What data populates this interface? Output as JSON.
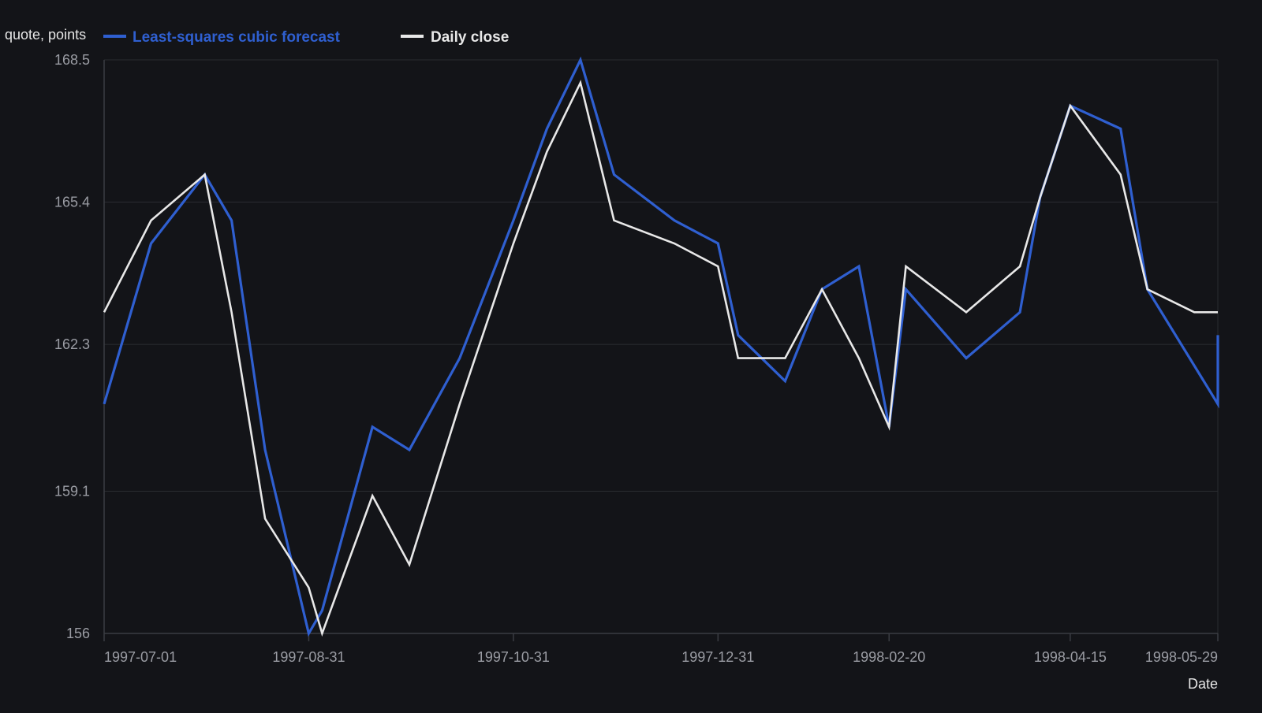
{
  "chart_data": {
    "type": "line",
    "title": "",
    "ylabel": "quote, points",
    "xlabel": "Date",
    "ylim": [
      156,
      168.5
    ],
    "y_ticks": [
      "156",
      "159.1",
      "162.3",
      "165.4",
      "168.5"
    ],
    "x_ticks": [
      {
        "date": "1997-07-01",
        "label": "1997-07-01"
      },
      {
        "date": "1997-08-31",
        "label": "1997-08-31"
      },
      {
        "date": "1997-10-31",
        "label": "1997-10-31"
      },
      {
        "date": "1997-12-31",
        "label": "1997-12-31"
      },
      {
        "date": "1998-02-20",
        "label": "1998-02-20"
      },
      {
        "date": "1998-04-15",
        "label": "1998-04-15"
      },
      {
        "date": "1998-05-29",
        "label": "1998-05-29"
      }
    ],
    "xlim": [
      "1997-07-01",
      "1998-05-29"
    ],
    "grid": true,
    "legend_position": "top-left",
    "series": [
      {
        "name": "Least-squares cubic forecast",
        "color": "#2f5fd0",
        "points": [
          {
            "x": "1997-07-01",
            "y": 161.0
          },
          {
            "x": "1997-07-15",
            "y": 164.5
          },
          {
            "x": "1997-07-31",
            "y": 166.0
          },
          {
            "x": "1997-08-08",
            "y": 165.0
          },
          {
            "x": "1997-08-18",
            "y": 160.0
          },
          {
            "x": "1997-08-31",
            "y": 156.0
          },
          {
            "x": "1997-09-04",
            "y": 156.5
          },
          {
            "x": "1997-09-19",
            "y": 160.5
          },
          {
            "x": "1997-09-30",
            "y": 160.0
          },
          {
            "x": "1997-10-15",
            "y": 162.0
          },
          {
            "x": "1997-10-31",
            "y": 165.0
          },
          {
            "x": "1997-11-10",
            "y": 167.0
          },
          {
            "x": "1997-11-20",
            "y": 168.5
          },
          {
            "x": "1997-11-30",
            "y": 166.0
          },
          {
            "x": "1997-12-18",
            "y": 165.0
          },
          {
            "x": "1997-12-31",
            "y": 164.5
          },
          {
            "x": "1998-01-06",
            "y": 162.5
          },
          {
            "x": "1998-01-20",
            "y": 161.5
          },
          {
            "x": "1998-01-31",
            "y": 163.5
          },
          {
            "x": "1998-02-11",
            "y": 164.0
          },
          {
            "x": "1998-02-20",
            "y": 160.5
          },
          {
            "x": "1998-02-25",
            "y": 163.5
          },
          {
            "x": "1998-03-15",
            "y": 162.0
          },
          {
            "x": "1998-03-31",
            "y": 163.0
          },
          {
            "x": "1998-04-06",
            "y": 165.5
          },
          {
            "x": "1998-04-15",
            "y": 167.5
          },
          {
            "x": "1998-04-30",
            "y": 167.0
          },
          {
            "x": "1998-05-08",
            "y": 163.5
          },
          {
            "x": "1998-05-29",
            "y": 161.0
          },
          {
            "x": "1998-05-29",
            "y": 162.5
          }
        ]
      },
      {
        "name": "Daily close",
        "color": "#e8e8e8",
        "points": [
          {
            "x": "1997-07-01",
            "y": 163.0
          },
          {
            "x": "1997-07-15",
            "y": 165.0
          },
          {
            "x": "1997-07-31",
            "y": 166.0
          },
          {
            "x": "1997-08-08",
            "y": 163.0
          },
          {
            "x": "1997-08-18",
            "y": 158.5
          },
          {
            "x": "1997-08-31",
            "y": 157.0
          },
          {
            "x": "1997-09-04",
            "y": 156.0
          },
          {
            "x": "1997-09-19",
            "y": 159.0
          },
          {
            "x": "1997-09-30",
            "y": 157.5
          },
          {
            "x": "1997-10-15",
            "y": 161.0
          },
          {
            "x": "1997-10-31",
            "y": 164.5
          },
          {
            "x": "1997-11-10",
            "y": 166.5
          },
          {
            "x": "1997-11-20",
            "y": 168.0
          },
          {
            "x": "1997-11-30",
            "y": 165.0
          },
          {
            "x": "1997-12-18",
            "y": 164.5
          },
          {
            "x": "1997-12-31",
            "y": 164.0
          },
          {
            "x": "1998-01-06",
            "y": 162.0
          },
          {
            "x": "1998-01-20",
            "y": 162.0
          },
          {
            "x": "1998-01-31",
            "y": 163.5
          },
          {
            "x": "1998-02-11",
            "y": 162.0
          },
          {
            "x": "1998-02-20",
            "y": 160.5
          },
          {
            "x": "1998-02-25",
            "y": 164.0
          },
          {
            "x": "1998-03-15",
            "y": 163.0
          },
          {
            "x": "1998-03-31",
            "y": 164.0
          },
          {
            "x": "1998-04-06",
            "y": 165.5
          },
          {
            "x": "1998-04-15",
            "y": 167.5
          },
          {
            "x": "1998-04-30",
            "y": 166.0
          },
          {
            "x": "1998-05-08",
            "y": 163.5
          },
          {
            "x": "1998-05-22",
            "y": 163.0
          },
          {
            "x": "1998-05-29",
            "y": 163.0
          }
        ]
      }
    ],
    "colors": {
      "background": "#131418",
      "grid": "#2a2c31",
      "axis": "#3a3c42",
      "tick_text": "#9a9ca3",
      "label_text": "#e6e6e6"
    }
  }
}
